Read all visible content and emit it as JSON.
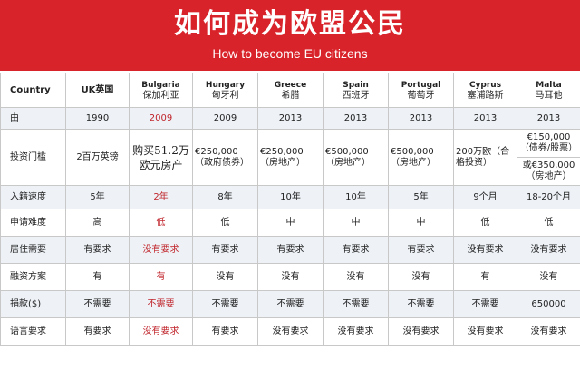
{
  "header": {
    "title": "如何成为欧盟公民",
    "subtitle": "How to become EU citizens",
    "bg_color": "#d8232a"
  },
  "table": {
    "columns": [
      {
        "label": "Country",
        "cn": ""
      },
      {
        "label": "UK英国",
        "cn": ""
      },
      {
        "label": "Bulgaria",
        "cn": "保加利亚"
      },
      {
        "label": "Hungary",
        "cn": "匈牙利"
      },
      {
        "label": "Greece",
        "cn": "希腊"
      },
      {
        "label": "Spain",
        "cn": "西班牙"
      },
      {
        "label": "Portugal",
        "cn": "葡萄牙"
      },
      {
        "label": "Cyprus",
        "cn": "塞浦路斯"
      },
      {
        "label": "Malta",
        "cn": "马耳他"
      }
    ],
    "rows": [
      {
        "label": "由",
        "cells": [
          "1990",
          "2009",
          "2009",
          "2013",
          "2013",
          "2013",
          "2013",
          "2013"
        ]
      },
      {
        "label": "投资门槛",
        "cells": [
          "2百万英镑",
          "购买51.2万欧元房产",
          "€250,000（政府债券）",
          "€250,000（房地产）",
          "€500,000（房地产）",
          "€500,000（房地产）",
          "200万欧（合格投资）",
          "€150,000（债券/股票）"
        ],
        "malta_extra": "或€350,000（房地产）"
      },
      {
        "label": "入籍速度",
        "cells": [
          "5年",
          "2年",
          "8年",
          "10年",
          "10年",
          "5年",
          "9个月",
          "18-20个月"
        ]
      },
      {
        "label": "申请难度",
        "cells": [
          "高",
          "低",
          "低",
          "中",
          "中",
          "中",
          "低",
          "低"
        ]
      },
      {
        "label": "居住需要",
        "cells": [
          "有要求",
          "没有要求",
          "有要求",
          "有要求",
          "有要求",
          "有要求",
          "没有要求",
          "没有要求"
        ]
      },
      {
        "label": "融资方案",
        "cells": [
          "有",
          "有",
          "没有",
          "没有",
          "没有",
          "没有",
          "有",
          "没有"
        ]
      },
      {
        "label": "捐款($)",
        "cells": [
          "不需要",
          "不需要",
          "不需要",
          "不需要",
          "不需要",
          "不需要",
          "不需要",
          "650000"
        ]
      },
      {
        "label": "语言要求",
        "cells": [
          "有要求",
          "没有要求",
          "有要求",
          "没有要求",
          "没有要求",
          "没有要求",
          "没有要求",
          "没有要求"
        ]
      }
    ]
  }
}
